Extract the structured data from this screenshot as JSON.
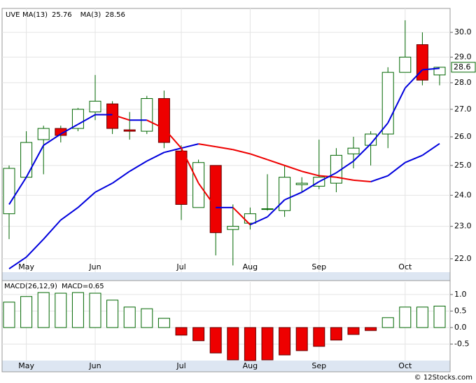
{
  "chart_data": [
    {
      "type": "candlestick",
      "title": "UVE",
      "categories": [
        null,
        "May",
        null,
        null,
        null,
        "Jun",
        null,
        null,
        null,
        null,
        "Jul",
        null,
        null,
        null,
        "Aug",
        null,
        null,
        null,
        "Sep",
        null,
        null,
        null,
        null,
        "Oct",
        null,
        null
      ],
      "open": [
        23.4,
        24.6,
        25.9,
        26.3,
        26.3,
        26.9,
        27.2,
        26.25,
        26.2,
        27.4,
        25.5,
        23.6,
        25.0,
        22.9,
        23.1,
        23.55,
        23.5,
        24.35,
        24.3,
        24.4,
        25.4,
        25.7,
        26.1,
        28.4,
        29.5,
        28.3
      ],
      "high": [
        25.0,
        26.2,
        26.4,
        26.4,
        27.05,
        28.3,
        27.3,
        26.9,
        27.5,
        27.7,
        25.7,
        25.2,
        25.0,
        23.7,
        23.6,
        24.7,
        25.0,
        24.6,
        25.9,
        25.6,
        26.0,
        26.2,
        28.6,
        30.5,
        30.0,
        28.6
      ],
      "low": [
        22.6,
        24.6,
        24.7,
        25.8,
        26.2,
        26.6,
        26.1,
        25.9,
        26.1,
        25.6,
        23.2,
        23.6,
        22.1,
        21.8,
        22.9,
        23.5,
        23.3,
        24.1,
        24.2,
        24.1,
        24.9,
        25.0,
        25.6,
        28.4,
        27.9,
        27.9
      ],
      "close": [
        24.9,
        25.8,
        26.3,
        26.05,
        27.0,
        27.3,
        26.3,
        26.2,
        27.4,
        25.8,
        23.7,
        25.1,
        22.8,
        23.0,
        23.4,
        23.56,
        24.6,
        24.4,
        24.6,
        25.35,
        25.6,
        26.1,
        28.4,
        29.0,
        28.1,
        28.6
      ],
      "up_color": "#ffffff",
      "down_color": "#ee0000",
      "edge_color": "#006600",
      "series": [
        {
          "name": "MA(13)",
          "color": "#0000dd",
          "down_color": "#ee0000",
          "values": [
            21.7,
            22.05,
            22.6,
            23.2,
            23.6,
            24.1,
            24.4,
            24.8,
            25.15,
            25.45,
            25.6,
            25.75,
            25.65,
            25.55,
            25.4,
            25.2,
            25.0,
            24.8,
            24.65,
            24.6,
            24.5,
            24.45,
            24.65,
            25.1,
            25.35,
            25.76
          ]
        },
        {
          "name": "MA(3)",
          "color": "#0000dd",
          "down_color": "#ee0000",
          "values": [
            23.7,
            24.6,
            25.7,
            26.1,
            26.45,
            26.8,
            26.8,
            26.6,
            26.6,
            26.3,
            25.6,
            24.4,
            23.6,
            23.6,
            23.05,
            23.3,
            23.85,
            24.1,
            24.45,
            24.75,
            25.15,
            25.75,
            26.5,
            27.8,
            28.5,
            28.56
          ]
        }
      ],
      "log_scale": true,
      "grid": true,
      "ylim": [
        21.6,
        31.0
      ],
      "yticks": [
        {
          "value": 22,
          "label": "22.0"
        },
        {
          "value": 23,
          "label": "23.0"
        },
        {
          "value": 24,
          "label": "24.0"
        },
        {
          "value": 25,
          "label": "25.0"
        },
        {
          "value": 26,
          "label": "26.0"
        },
        {
          "value": 27,
          "label": "27.0"
        },
        {
          "value": 28,
          "label": "28.0"
        },
        {
          "value": 29,
          "label": "29.0"
        },
        {
          "value": 30,
          "label": "30.0"
        }
      ]
    },
    {
      "type": "bar",
      "title": "MACD(26,12,9)",
      "value_name": "MACD=",
      "categories": [
        null,
        "May",
        null,
        null,
        null,
        "Jun",
        null,
        null,
        null,
        null,
        "Jul",
        null,
        null,
        null,
        "Aug",
        null,
        null,
        null,
        "Sep",
        null,
        null,
        null,
        null,
        "Oct",
        null,
        null
      ],
      "values": [
        0.77,
        0.94,
        1.06,
        1.04,
        1.06,
        1.04,
        0.83,
        0.62,
        0.57,
        0.28,
        -0.23,
        -0.4,
        -0.77,
        -0.98,
        -1.0,
        -0.98,
        -0.83,
        -0.7,
        -0.57,
        -0.38,
        -0.21,
        -0.09,
        0.3,
        0.62,
        0.62,
        0.65
      ],
      "positive_color": "#ffffff",
      "negative_color": "#ee0000",
      "edge_color": "#006600",
      "grid": true,
      "ylim": [
        -1.0,
        1.38
      ],
      "yticks": [
        {
          "value": -0.5,
          "label": "-0.5"
        },
        {
          "value": 0,
          "label": "0.0"
        },
        {
          "value": 0.5,
          "label": "0.5"
        },
        {
          "value": 1,
          "label": "1.0"
        }
      ]
    }
  ],
  "footer": "© 12Stocks.com"
}
